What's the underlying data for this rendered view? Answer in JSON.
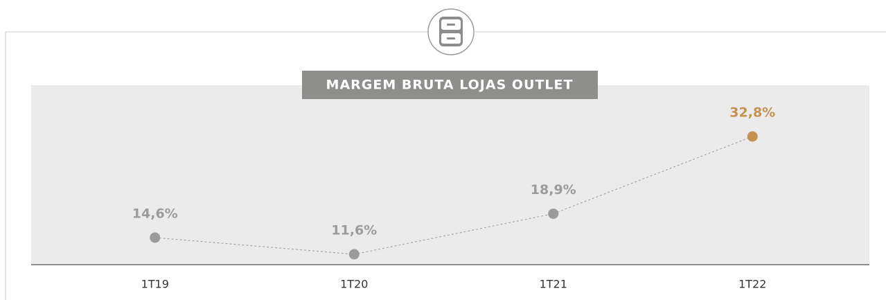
{
  "chart_data": {
    "type": "line",
    "title": "MARGEM BRUTA LOJAS OUTLET",
    "categories": [
      "1T19",
      "1T20",
      "1T21",
      "1T22"
    ],
    "series": [
      {
        "color": "#9b9b9b",
        "values": [
          14.6,
          11.6,
          18.9,
          32.8
        ],
        "value_labels": [
          "14,6%",
          "11,6%",
          "18,9%",
          "32,8%"
        ],
        "point_colors": [
          "#9b9b9b",
          "#9b9b9b",
          "#9b9b9b",
          "#c4924e"
        ]
      }
    ]
  }
}
